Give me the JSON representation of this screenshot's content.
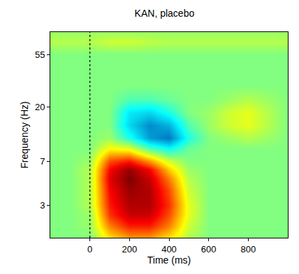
{
  "chart_data": {
    "type": "heatmap",
    "title": "KAN, placebo",
    "x_label": "Time (ms)",
    "y_label": "Frequency (Hz)",
    "color": "Jet",
    "log": "y",
    "xlim": [
      -200,
      1000
    ],
    "xticks": [
      0,
      200,
      400,
      600,
      800
    ],
    "ylim": [
      1.6,
      85
    ],
    "yticks": [
      3,
      7,
      20,
      55
    ],
    "zlim": [
      -1,
      1
    ],
    "vline": 0,
    "x": [
      -200,
      -100,
      0,
      100,
      200,
      300,
      400,
      500,
      600,
      700,
      800,
      900,
      1000
    ],
    "y": [
      1.6,
      2,
      2.5,
      3,
      4,
      5,
      6,
      7,
      9,
      11,
      14,
      18,
      23,
      30,
      40,
      55,
      70,
      85
    ],
    "z": [
      [
        0,
        0,
        0,
        0.3,
        0.45,
        0.45,
        0.3,
        0.1,
        0,
        0,
        0,
        0,
        0
      ],
      [
        0,
        0,
        0.05,
        0.5,
        0.7,
        0.7,
        0.5,
        0.15,
        0,
        0,
        0,
        0,
        0
      ],
      [
        0,
        0,
        0.05,
        0.65,
        0.85,
        0.85,
        0.6,
        0.2,
        0,
        0,
        0,
        0,
        0
      ],
      [
        0,
        0,
        0.1,
        0.7,
        0.9,
        0.9,
        0.65,
        0.2,
        0,
        0,
        0,
        0,
        0
      ],
      [
        0,
        0,
        0.1,
        0.75,
        0.95,
        0.9,
        0.6,
        0.15,
        0,
        0,
        0,
        0,
        0
      ],
      [
        0,
        0,
        0.1,
        0.8,
        1.0,
        0.85,
        0.5,
        0.1,
        0,
        0,
        0,
        0,
        0
      ],
      [
        0,
        0,
        0.1,
        0.75,
        0.95,
        0.75,
        0.35,
        0.05,
        0,
        0,
        0,
        0,
        0
      ],
      [
        0,
        0,
        0.05,
        0.6,
        0.7,
        0.45,
        0.15,
        0,
        0,
        0,
        0,
        0,
        0
      ],
      [
        0,
        0,
        0,
        0.25,
        0.2,
        -0.1,
        -0.25,
        -0.05,
        0,
        0,
        0,
        0,
        0
      ],
      [
        0,
        0,
        0,
        0.05,
        -0.2,
        -0.5,
        -0.6,
        -0.2,
        0,
        0.05,
        0.1,
        0.05,
        0
      ],
      [
        0,
        0,
        0,
        0,
        -0.35,
        -0.55,
        -0.45,
        -0.1,
        0.05,
        0.15,
        0.2,
        0.1,
        0
      ],
      [
        0,
        0,
        0,
        0,
        -0.3,
        -0.35,
        -0.2,
        0,
        0.05,
        0.15,
        0.2,
        0.1,
        0
      ],
      [
        0,
        0,
        0,
        0,
        -0.1,
        -0.1,
        -0.05,
        0,
        0,
        0.05,
        0.1,
        0.05,
        0
      ],
      [
        0,
        0,
        0,
        0,
        0,
        0,
        0,
        0,
        0,
        0,
        0,
        0,
        0
      ],
      [
        0,
        0,
        0,
        0,
        0,
        0,
        0,
        0,
        0,
        0,
        0,
        0,
        0
      ],
      [
        0,
        0,
        0,
        0,
        0,
        0,
        0,
        0,
        0,
        0,
        0,
        0,
        0
      ],
      [
        0.1,
        0.1,
        0.1,
        0.15,
        0.15,
        0.12,
        0.1,
        0.1,
        0.1,
        0.1,
        0.1,
        0.1,
        0.1
      ],
      [
        0.05,
        0.05,
        0.05,
        0.05,
        0.05,
        0.05,
        0.05,
        0.05,
        0.05,
        0.05,
        0.05,
        0.05,
        0.05
      ]
    ]
  }
}
